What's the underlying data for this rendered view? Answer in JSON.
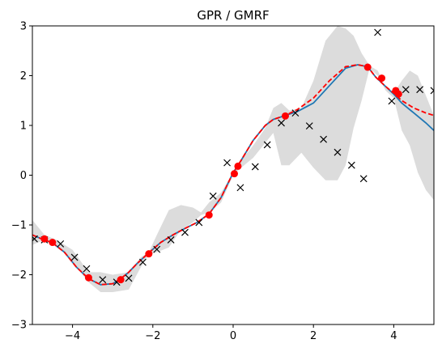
{
  "chart_data": {
    "type": "line",
    "title": "GPR / GMRF",
    "xlabel": "",
    "ylabel": "",
    "xlim": [
      -5,
      5
    ],
    "ylim": [
      -3,
      3
    ],
    "xticks": [
      -4,
      -2,
      0,
      2,
      4
    ],
    "xtick_labels": [
      "−4",
      "−2",
      "0",
      "2",
      "4"
    ],
    "yticks": [
      -3,
      -2,
      -1,
      0,
      1,
      2,
      3
    ],
    "ytick_labels": [
      "−3",
      "−2",
      "−1",
      "0",
      "1",
      "2",
      "3"
    ],
    "grid": false,
    "colors": {
      "band": "#dcdcdc",
      "gpr_mean": "#1f77b4",
      "gmrf_mean": "#ff0000",
      "observed": "#ff0000",
      "samples": "#000000"
    },
    "confidence_band": {
      "x": [
        -5.0,
        -4.7,
        -4.4,
        -4.0,
        -3.6,
        -3.3,
        -3.0,
        -2.6,
        -2.3,
        -2.1,
        -1.9,
        -1.6,
        -1.3,
        -1.0,
        -0.8,
        -0.6,
        -0.3,
        0.0,
        0.2,
        0.5,
        0.8,
        1.0,
        1.2,
        1.4,
        1.7,
        2.0,
        2.3,
        2.6,
        2.8,
        3.0,
        3.2,
        3.4,
        3.6,
        3.8,
        4.0,
        4.2,
        4.4,
        4.6,
        4.8,
        5.0
      ],
      "upper": [
        -0.9,
        -1.2,
        -1.3,
        -1.5,
        -1.95,
        -1.95,
        -2.0,
        -1.95,
        -1.65,
        -1.55,
        -1.2,
        -0.7,
        -0.6,
        -0.65,
        -0.75,
        -0.55,
        -0.35,
        0.05,
        0.3,
        0.6,
        0.95,
        1.35,
        1.45,
        1.3,
        1.35,
        1.9,
        2.7,
        3.0,
        2.95,
        2.8,
        2.45,
        2.2,
        2.1,
        1.75,
        1.65,
        1.9,
        2.1,
        2.0,
        1.6,
        1.2
      ],
      "lower": [
        -1.4,
        -1.3,
        -1.4,
        -1.75,
        -2.15,
        -2.35,
        -2.35,
        -2.3,
        -1.85,
        -1.6,
        -1.55,
        -1.45,
        -1.1,
        -0.95,
        -0.8,
        -0.75,
        -0.55,
        0.0,
        0.15,
        0.35,
        0.65,
        0.85,
        0.2,
        0.2,
        0.45,
        0.15,
        -0.1,
        -0.1,
        0.2,
        0.95,
        1.5,
        2.15,
        2.0,
        1.7,
        1.55,
        0.9,
        0.6,
        0.05,
        -0.3,
        -0.5
      ]
    },
    "series": [
      {
        "name": "",
        "style": "solid",
        "color": "#1f77b4",
        "x": [
          -5.0,
          -4.8,
          -4.5,
          -4.2,
          -3.9,
          -3.6,
          -3.3,
          -3.0,
          -2.8,
          -2.6,
          -2.4,
          -2.1,
          -1.8,
          -1.5,
          -1.2,
          -0.9,
          -0.6,
          -0.3,
          0.0,
          0.2,
          0.5,
          0.8,
          1.0,
          1.3,
          1.6,
          2.0,
          2.4,
          2.8,
          3.1,
          3.35,
          3.55,
          3.8,
          4.0,
          4.2,
          4.5,
          4.8,
          5.0
        ],
        "y": [
          -1.2,
          -1.27,
          -1.36,
          -1.55,
          -1.85,
          -2.08,
          -2.2,
          -2.18,
          -2.08,
          -1.95,
          -1.78,
          -1.56,
          -1.35,
          -1.2,
          -1.07,
          -0.95,
          -0.78,
          -0.45,
          0.05,
          0.3,
          0.7,
          1.0,
          1.12,
          1.2,
          1.28,
          1.45,
          1.8,
          2.15,
          2.22,
          2.18,
          1.97,
          1.78,
          1.63,
          1.45,
          1.25,
          1.05,
          0.9
        ]
      },
      {
        "name": "",
        "style": "dashed",
        "color": "#ff0000",
        "x": [
          -5.0,
          -4.8,
          -4.5,
          -4.2,
          -3.9,
          -3.6,
          -3.3,
          -3.0,
          -2.8,
          -2.6,
          -2.4,
          -2.1,
          -1.8,
          -1.5,
          -1.2,
          -0.9,
          -0.6,
          -0.3,
          0.0,
          0.2,
          0.5,
          0.8,
          1.0,
          1.3,
          1.6,
          2.0,
          2.4,
          2.8,
          3.1,
          3.35,
          3.55,
          3.8,
          4.0,
          4.2,
          4.5,
          4.8,
          5.0
        ],
        "y": [
          -1.2,
          -1.27,
          -1.36,
          -1.55,
          -1.85,
          -2.08,
          -2.2,
          -2.18,
          -2.08,
          -1.95,
          -1.78,
          -1.56,
          -1.35,
          -1.2,
          -1.07,
          -0.95,
          -0.78,
          -0.45,
          0.05,
          0.3,
          0.7,
          1.0,
          1.12,
          1.2,
          1.32,
          1.55,
          1.9,
          2.18,
          2.22,
          2.18,
          1.97,
          1.78,
          1.65,
          1.5,
          1.35,
          1.25,
          1.2
        ]
      }
    ],
    "observed_points": {
      "x": [
        -4.7,
        -4.5,
        -3.6,
        -2.8,
        -2.1,
        -0.6,
        0.03,
        0.12,
        1.3,
        3.35,
        3.7,
        4.05,
        4.12
      ],
      "y": [
        -1.28,
        -1.35,
        -2.06,
        -2.1,
        -1.58,
        -0.8,
        0.03,
        0.18,
        1.19,
        2.17,
        1.95,
        1.7,
        1.63
      ]
    },
    "sample_points": {
      "x": [
        -4.95,
        -4.7,
        -4.3,
        -3.95,
        -3.65,
        -3.25,
        -2.9,
        -2.6,
        -2.25,
        -1.9,
        -1.55,
        -1.2,
        -0.85,
        -0.5,
        -0.15,
        0.18,
        0.55,
        0.85,
        1.2,
        1.55,
        1.9,
        2.25,
        2.6,
        2.95,
        3.25,
        3.6,
        3.95,
        4.3,
        4.65,
        5.0
      ],
      "y": [
        -1.28,
        -1.3,
        -1.38,
        -1.65,
        -1.88,
        -2.1,
        -2.15,
        -2.07,
        -1.75,
        -1.49,
        -1.3,
        -1.15,
        -0.95,
        -0.42,
        0.25,
        -0.25,
        0.17,
        0.61,
        1.05,
        1.25,
        0.99,
        0.72,
        0.46,
        0.2,
        -0.07,
        2.87,
        1.49,
        1.72,
        1.72,
        1.7
      ]
    }
  }
}
